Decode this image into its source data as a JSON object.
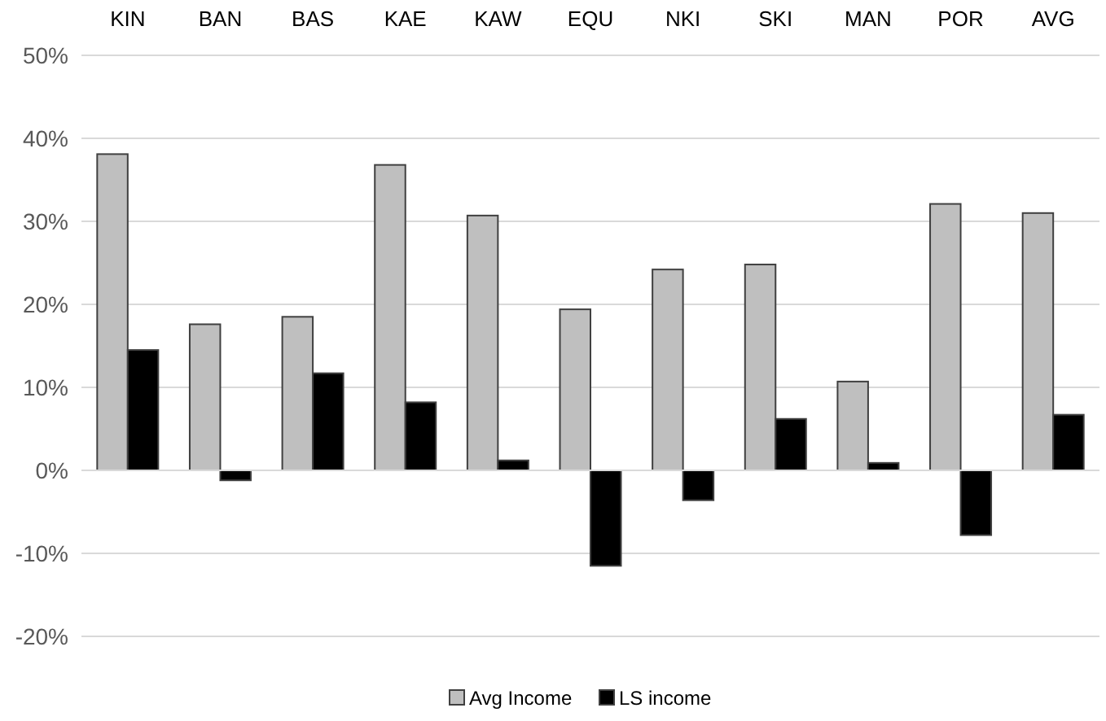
{
  "chart_data": {
    "type": "bar",
    "categories": [
      "KIN",
      "BAN",
      "BAS",
      "KAE",
      "KAW",
      "EQU",
      "NKI",
      "SKI",
      "MAN",
      "POR",
      "AVG"
    ],
    "series": [
      {
        "name": "Avg Income",
        "color": "#bfbfbf",
        "values": [
          38.1,
          17.6,
          18.5,
          36.8,
          30.7,
          19.4,
          24.2,
          24.8,
          10.7,
          32.1,
          31.0
        ]
      },
      {
        "name": "LS income",
        "color": "#000000",
        "values": [
          14.5,
          -1.2,
          11.7,
          8.2,
          1.2,
          -11.5,
          -3.6,
          6.2,
          0.9,
          -7.8,
          6.7
        ]
      }
    ],
    "ylim": [
      -20,
      50
    ],
    "yticks": [
      {
        "value": -20,
        "label": "-20%"
      },
      {
        "value": -10,
        "label": "-10%"
      },
      {
        "value": 0,
        "label": "0%"
      },
      {
        "value": 10,
        "label": "10%"
      },
      {
        "value": 20,
        "label": "20%"
      },
      {
        "value": 30,
        "label": "30%"
      },
      {
        "value": 40,
        "label": "40%"
      },
      {
        "value": 50,
        "label": "50%"
      }
    ],
    "grid": "y",
    "legend": "bottom"
  }
}
